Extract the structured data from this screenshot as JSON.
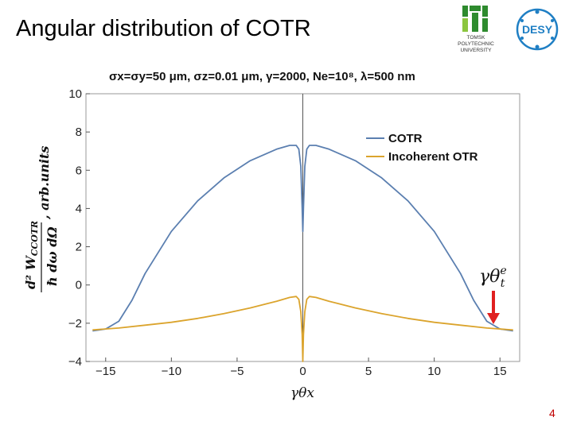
{
  "slide": {
    "title": "Angular distribution of COTR",
    "page_number": "4",
    "logo_tpu_text": [
      "TOMSK",
      "POLYTECHNIC",
      "UNIVERSITY"
    ],
    "logo_desy_text": "DESY"
  },
  "colors": {
    "cotr": "#5b7fb0",
    "otr": "#dba42d",
    "arrow": "#e02020",
    "desy": "#1f7fc4",
    "tpu": "#2e8b2e"
  },
  "chart_data": {
    "type": "line",
    "title": "σx=σy=50 μm,  σz=0.01 μm,  γ=2000,  Ne=10⁸,  λ=500 nm",
    "xlabel": "γθx",
    "ylabel_num": "d² W",
    "ylabel_num_sub": "CCOTR",
    "ylabel_den": "ℏ dω dΩ",
    "ylabel_suffix": ", arb.units",
    "xlim": [
      -16.5,
      16.5
    ],
    "ylim": [
      -4,
      10
    ],
    "x_ticks": [
      -15,
      -10,
      -5,
      0,
      5,
      10,
      15
    ],
    "x_tick_labels": [
      "−15",
      "−10",
      "−5",
      "0",
      "5",
      "10",
      "15"
    ],
    "y_ticks": [
      -4,
      -2,
      0,
      2,
      4,
      6,
      8,
      10
    ],
    "y_tick_labels": [
      "−4",
      "−2",
      "0",
      "2",
      "4",
      "6",
      "8",
      "10"
    ],
    "legend": [
      "COTR",
      "Incoherent OTR"
    ],
    "annotation": "γθ",
    "annotation_sup": "e",
    "annotation_sub": "t",
    "series": [
      {
        "name": "COTR",
        "x": [
          -16,
          -15,
          -14,
          -13,
          -12,
          -10,
          -8,
          -6,
          -4,
          -2,
          -1,
          -0.5,
          -0.3,
          -0.15,
          -0.05,
          0,
          0.05,
          0.15,
          0.3,
          0.5,
          1,
          2,
          4,
          6,
          8,
          10,
          12,
          13,
          14,
          15,
          16
        ],
        "y": [
          -2.4,
          -2.3,
          -1.9,
          -0.8,
          0.6,
          2.8,
          4.4,
          5.6,
          6.5,
          7.1,
          7.3,
          7.3,
          7.1,
          6.2,
          4.0,
          2.8,
          4.0,
          6.2,
          7.1,
          7.3,
          7.3,
          7.1,
          6.5,
          5.6,
          4.4,
          2.8,
          0.6,
          -0.8,
          -1.9,
          -2.3,
          -2.4
        ]
      },
      {
        "name": "Incoherent OTR",
        "x": [
          -16,
          -14,
          -12,
          -10,
          -8,
          -6,
          -4,
          -2,
          -1,
          -0.5,
          -0.3,
          -0.15,
          -0.05,
          0,
          0.05,
          0.15,
          0.3,
          0.5,
          1,
          2,
          4,
          6,
          8,
          10,
          12,
          14,
          16
        ],
        "y": [
          -2.35,
          -2.25,
          -2.1,
          -1.95,
          -1.75,
          -1.5,
          -1.2,
          -0.85,
          -0.65,
          -0.6,
          -0.75,
          -1.4,
          -2.6,
          -4.0,
          -2.6,
          -1.4,
          -0.75,
          -0.6,
          -0.65,
          -0.85,
          -1.2,
          -1.5,
          -1.75,
          -1.95,
          -2.1,
          -2.25,
          -2.35
        ]
      }
    ]
  }
}
